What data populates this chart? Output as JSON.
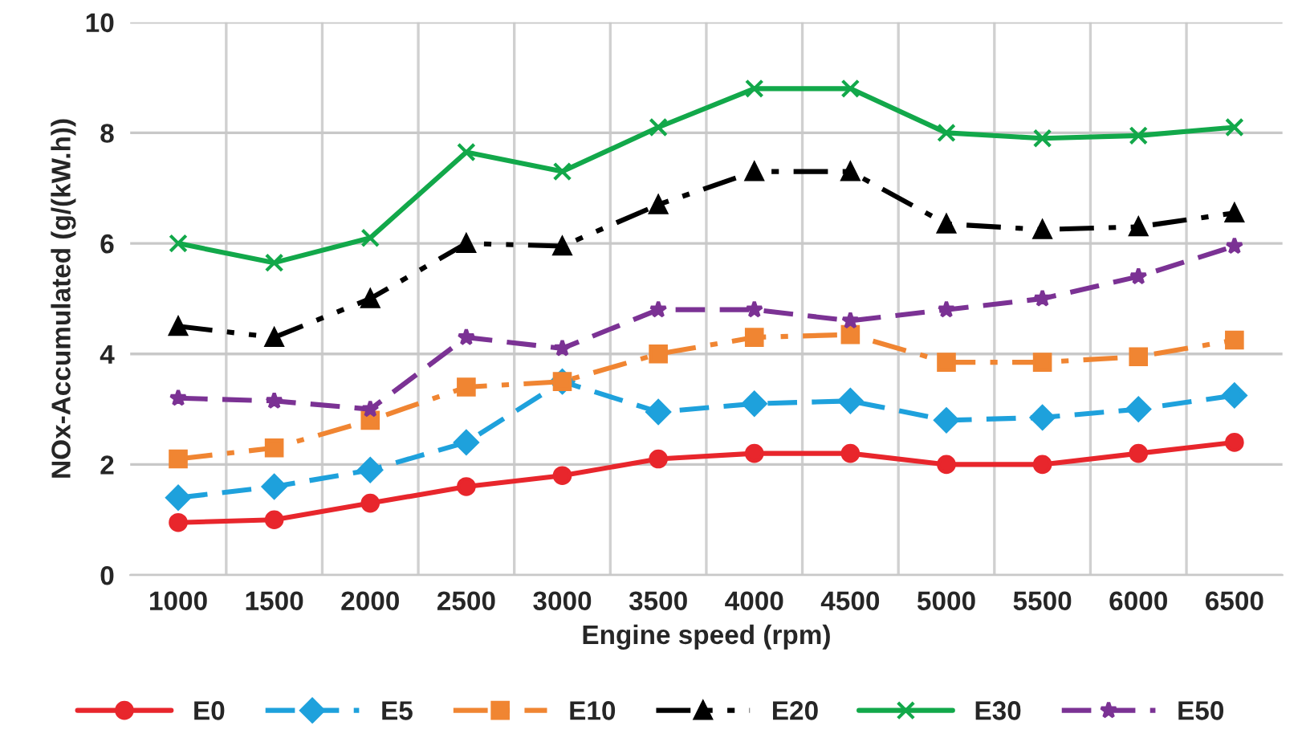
{
  "chart_data": {
    "type": "line",
    "xlabel": "Engine speed (rpm)",
    "ylabel": "NOx-Accumulated (g/(kW.h))",
    "categories": [
      "1000",
      "1500",
      "2000",
      "2500",
      "3000",
      "3500",
      "4000",
      "4500",
      "5000",
      "5500",
      "6000",
      "6500"
    ],
    "series": [
      {
        "name": "E0",
        "color": "#e8262c",
        "marker": "circle",
        "line_style": "solid",
        "values": [
          0.95,
          1.0,
          1.3,
          1.6,
          1.8,
          2.1,
          2.2,
          2.2,
          2.0,
          2.0,
          2.2,
          2.4
        ]
      },
      {
        "name": "E5",
        "color": "#1ea1dc",
        "marker": "diamond",
        "line_style": "dashed",
        "values": [
          1.4,
          1.6,
          1.9,
          2.4,
          3.5,
          2.95,
          3.1,
          3.15,
          2.8,
          2.85,
          3.0,
          3.25
        ]
      },
      {
        "name": "E10",
        "color": "#f08532",
        "marker": "square",
        "line_style": "dashdot",
        "values": [
          2.1,
          2.3,
          2.8,
          3.4,
          3.5,
          4.0,
          4.3,
          4.35,
          3.85,
          3.85,
          3.95,
          4.25
        ]
      },
      {
        "name": "E20",
        "color": "#000000",
        "marker": "triangle",
        "line_style": "dashdotdot",
        "values": [
          4.5,
          4.3,
          5.0,
          6.0,
          5.95,
          6.7,
          7.3,
          7.3,
          6.35,
          6.25,
          6.3,
          6.55
        ]
      },
      {
        "name": "E30",
        "color": "#12a84a",
        "marker": "cross",
        "line_style": "solid",
        "values": [
          6.0,
          5.65,
          6.1,
          7.65,
          7.3,
          8.1,
          8.8,
          8.8,
          8.0,
          7.9,
          7.95,
          8.1
        ]
      },
      {
        "name": "E50",
        "color": "#7b3294",
        "marker": "star",
        "line_style": "dashed",
        "values": [
          3.2,
          3.15,
          3.0,
          4.3,
          4.1,
          4.8,
          4.8,
          4.6,
          4.8,
          5.0,
          5.4,
          5.95
        ]
      }
    ],
    "ylim": [
      0,
      10
    ],
    "yticks": [
      0,
      2,
      4,
      6,
      8,
      10
    ],
    "grid": true,
    "legend": "bottom"
  }
}
